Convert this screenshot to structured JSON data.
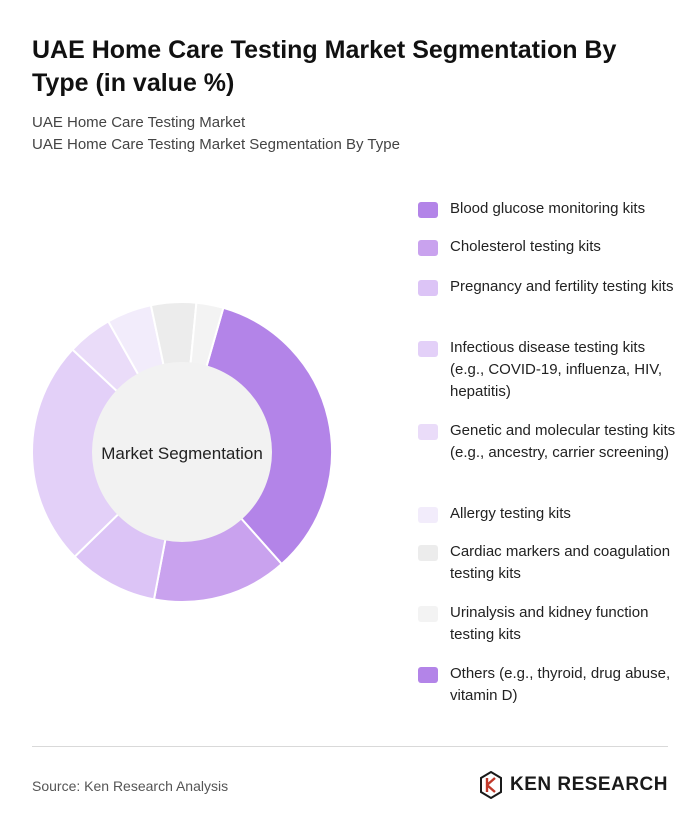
{
  "title": "UAE Home Care Testing Market Segmentation By Type (in value %)",
  "subtitle_1": "UAE Home Care Testing Market",
  "subtitle_2": "UAE Home Care Testing Market Segmentation By Type",
  "center_label": "Market Segmentation",
  "source": "Source: Ken Research Analysis",
  "brand": "KEN RESEARCH",
  "chart_data": {
    "type": "pie",
    "donut": true,
    "legend_position": "right",
    "categories": [
      "Blood glucose monitoring kits",
      "Cholesterol testing kits",
      "Pregnancy and fertility testing kits",
      "Infectious disease testing kits (e.g., COVID-19, influenza, HIV, hepatitis)",
      "Genetic and molecular testing kits (e.g., ancestry, carrier screening)",
      "Allergy testing kits",
      "Cardiac markers and coagulation testing kits",
      "Urinalysis and kidney function testing kits",
      "Others (e.g., thyroid, drug abuse, vitamin D)"
    ],
    "values": [
      35,
      15,
      10,
      25,
      5,
      5,
      5,
      3,
      0
    ],
    "colors": [
      "#b384e8",
      "#c9a2ee",
      "#dcc4f6",
      "#e3d0f8",
      "#eadcf9",
      "#f2ecfb",
      "#ececec",
      "#f3f3f3",
      "#b384e8"
    ]
  }
}
